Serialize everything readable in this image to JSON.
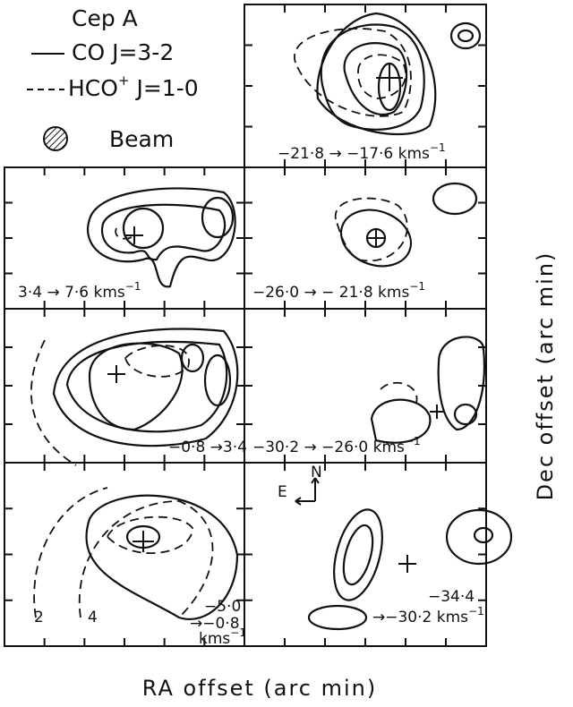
{
  "legend": {
    "title": "Cep A",
    "co": "CO J=3-2",
    "hco": "HCO",
    "hco_sup": "+",
    "hco_rest": " J=1-0",
    "beam": "Beam"
  },
  "panels": [
    {
      "label": "−21·8 → −17·6 kms",
      "exp": "−1"
    },
    {
      "label": "3·4 → 7·6 kms",
      "exp": "−1"
    },
    {
      "label": "−26·0 → − 21·8 kms",
      "exp": "−1"
    },
    {
      "label": "−0·8 →3·4"
    },
    {
      "label": "−30·2 → −26·0 kms",
      "exp": "−1"
    },
    {
      "lines": [
        "−5·0",
        "→−0·8",
        "kms"
      ],
      "exp": "−1",
      "contours": [
        "2",
        "4"
      ]
    },
    {
      "lines": [
        "−34·4",
        "→−30·2 kms"
      ],
      "exp": "−1",
      "compass": [
        "N",
        "E"
      ]
    }
  ],
  "axes": {
    "x": "RA offset (arc min)",
    "y": "Dec offset (arc min)"
  }
}
